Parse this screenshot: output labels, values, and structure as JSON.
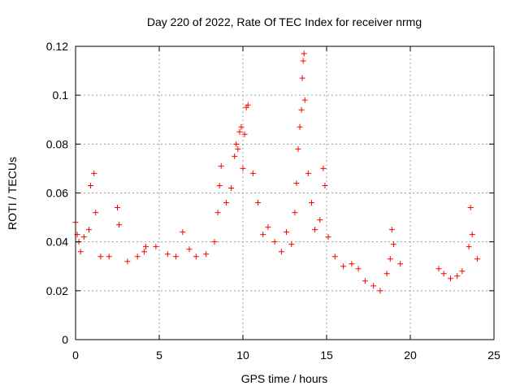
{
  "chart_data": {
    "type": "scatter",
    "title": "Day 220 of 2022, Rate Of TEC Index for receiver nrmg",
    "xlabel": "GPS time / hours",
    "ylabel": "ROTI / TECUs",
    "xlim": [
      0,
      25
    ],
    "ylim": [
      0,
      0.12
    ],
    "x_ticks": [
      0,
      5,
      10,
      15,
      20,
      25
    ],
    "x_tick_labels": [
      "0",
      "5",
      "10",
      "15",
      "20",
      "25"
    ],
    "y_ticks": [
      0,
      0.02,
      0.04,
      0.06,
      0.08,
      0.1,
      0.12
    ],
    "y_tick_labels": [
      "0",
      "0.02",
      "0.04",
      "0.06",
      "0.08",
      "0.1",
      "0.12"
    ],
    "grid": true,
    "marker": "plus",
    "color": "#ff0000",
    "series": [
      {
        "points": [
          [
            0.0,
            0.048
          ],
          [
            0.1,
            0.043
          ],
          [
            0.2,
            0.04
          ],
          [
            0.3,
            0.036
          ],
          [
            0.5,
            0.042
          ],
          [
            0.8,
            0.045
          ],
          [
            0.9,
            0.063
          ],
          [
            1.1,
            0.068
          ],
          [
            1.2,
            0.052
          ],
          [
            1.5,
            0.034
          ],
          [
            2.0,
            0.034
          ],
          [
            2.5,
            0.054
          ],
          [
            2.6,
            0.047
          ],
          [
            3.1,
            0.032
          ],
          [
            3.7,
            0.034
          ],
          [
            4.1,
            0.036
          ],
          [
            4.2,
            0.038
          ],
          [
            4.8,
            0.038
          ],
          [
            5.5,
            0.035
          ],
          [
            6.0,
            0.034
          ],
          [
            6.4,
            0.044
          ],
          [
            6.8,
            0.037
          ],
          [
            7.2,
            0.034
          ],
          [
            7.8,
            0.035
          ],
          [
            8.3,
            0.04
          ],
          [
            8.5,
            0.052
          ],
          [
            8.6,
            0.063
          ],
          [
            8.7,
            0.071
          ],
          [
            9.0,
            0.056
          ],
          [
            9.3,
            0.062
          ],
          [
            9.5,
            0.075
          ],
          [
            9.6,
            0.08
          ],
          [
            9.7,
            0.078
          ],
          [
            9.8,
            0.085
          ],
          [
            9.9,
            0.087
          ],
          [
            10.0,
            0.07
          ],
          [
            10.1,
            0.084
          ],
          [
            10.2,
            0.095
          ],
          [
            10.3,
            0.096
          ],
          [
            10.6,
            0.068
          ],
          [
            10.9,
            0.056
          ],
          [
            11.2,
            0.043
          ],
          [
            11.5,
            0.046
          ],
          [
            11.9,
            0.04
          ],
          [
            12.3,
            0.036
          ],
          [
            12.6,
            0.044
          ],
          [
            12.9,
            0.039
          ],
          [
            13.1,
            0.052
          ],
          [
            13.2,
            0.064
          ],
          [
            13.3,
            0.078
          ],
          [
            13.4,
            0.087
          ],
          [
            13.5,
            0.094
          ],
          [
            13.55,
            0.107
          ],
          [
            13.6,
            0.114
          ],
          [
            13.65,
            0.117
          ],
          [
            13.7,
            0.098
          ],
          [
            13.9,
            0.068
          ],
          [
            14.1,
            0.056
          ],
          [
            14.3,
            0.045
          ],
          [
            14.6,
            0.049
          ],
          [
            14.8,
            0.07
          ],
          [
            14.9,
            0.063
          ],
          [
            15.1,
            0.042
          ],
          [
            15.5,
            0.034
          ],
          [
            16.0,
            0.03
          ],
          [
            16.5,
            0.031
          ],
          [
            16.9,
            0.029
          ],
          [
            17.3,
            0.024
          ],
          [
            17.8,
            0.022
          ],
          [
            18.2,
            0.02
          ],
          [
            18.6,
            0.027
          ],
          [
            18.8,
            0.033
          ],
          [
            18.9,
            0.045
          ],
          [
            19.0,
            0.039
          ],
          [
            19.4,
            0.031
          ],
          [
            21.7,
            0.029
          ],
          [
            22.0,
            0.027
          ],
          [
            22.4,
            0.025
          ],
          [
            22.8,
            0.026
          ],
          [
            23.1,
            0.028
          ],
          [
            23.5,
            0.038
          ],
          [
            23.6,
            0.054
          ],
          [
            23.7,
            0.043
          ],
          [
            24.0,
            0.033
          ]
        ]
      }
    ]
  }
}
